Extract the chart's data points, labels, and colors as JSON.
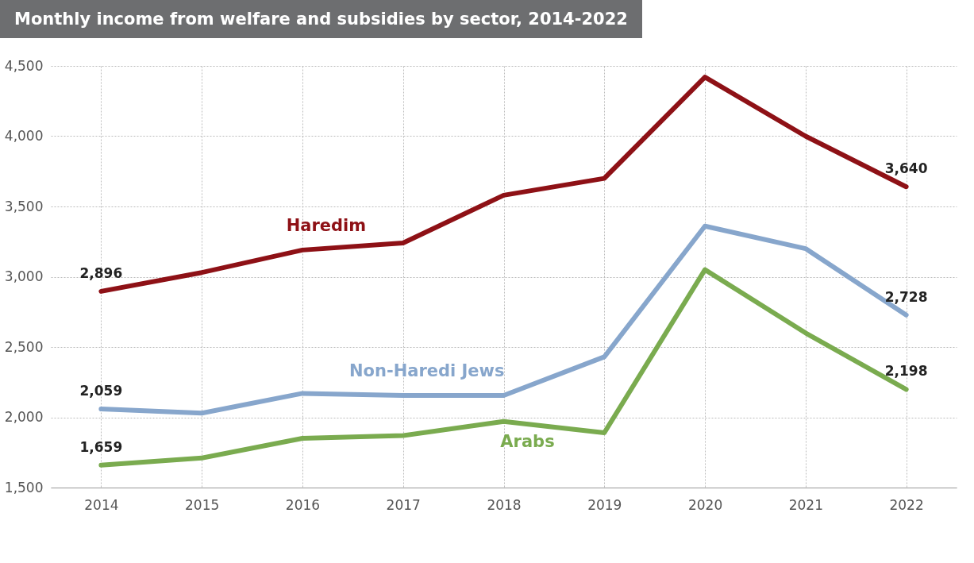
{
  "chart_data": {
    "type": "line",
    "title": "Monthly income from welfare and subsidies by sector, 2014-2022",
    "categories": [
      "2014",
      "2015",
      "2016",
      "2017",
      "2018",
      "2019",
      "2020",
      "2021",
      "2022"
    ],
    "series": [
      {
        "name": "Haredim",
        "color": "#8e1116",
        "values": [
          2896,
          3030,
          3190,
          3240,
          3580,
          3700,
          4420,
          4000,
          3640
        ],
        "value_labels": [
          "2,896",
          null,
          null,
          null,
          null,
          null,
          null,
          null,
          "3,640"
        ]
      },
      {
        "name": "Non-Haredi Jews",
        "color": "#87a6cc",
        "values": [
          2059,
          2030,
          2170,
          2155,
          2155,
          2430,
          3360,
          3200,
          2728
        ],
        "value_labels": [
          "2,059",
          null,
          null,
          null,
          null,
          null,
          null,
          null,
          "2,728"
        ]
      },
      {
        "name": "Arabs",
        "color": "#7aab4f",
        "values": [
          1659,
          1710,
          1850,
          1870,
          1970,
          1890,
          3050,
          2600,
          2198
        ],
        "value_labels": [
          "1,659",
          null,
          null,
          null,
          null,
          null,
          null,
          null,
          "2,198"
        ]
      }
    ],
    "ylim": [
      1500,
      4500
    ],
    "yticks": [
      {
        "value": 1500,
        "label": "1,500"
      },
      {
        "value": 2000,
        "label": "2,000"
      },
      {
        "value": 2500,
        "label": "2,500"
      },
      {
        "value": 3000,
        "label": "3,000"
      },
      {
        "value": 3500,
        "label": "3,500"
      },
      {
        "value": 4000,
        "label": "4,000"
      },
      {
        "value": 4500,
        "label": "4,500"
      }
    ],
    "grid": true,
    "legend": false,
    "marker": "none",
    "line_style": "solid"
  }
}
